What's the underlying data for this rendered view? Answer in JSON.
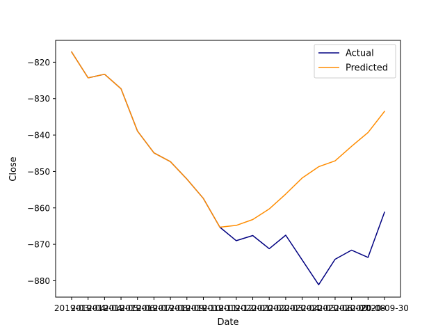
{
  "chart_data": {
    "type": "line",
    "title": "",
    "xlabel": "Date",
    "ylabel": "Close",
    "ylim": [
      -884.5,
      -814.0
    ],
    "yticks": [
      -880,
      -870,
      -860,
      -850,
      -840,
      -830,
      -820
    ],
    "x": [
      "2019-03",
      "2019-04",
      "2019-04",
      "2019-05",
      "2019-06",
      "2019-07",
      "2019-08",
      "2019-09",
      "2019-10",
      "2019-11",
      "2019-12",
      "2020-01",
      "2020-02",
      "2020-03",
      "2020-04",
      "2020-05",
      "2020-06",
      "2020-07",
      "2020-08",
      "2020-09"
    ],
    "xtick_labels": [
      "2019-03",
      "2019-04",
      "2019-04",
      "2019-05",
      "2019-06",
      "2019-07",
      "2019-08",
      "2019-09",
      "2019-10",
      "2019-11",
      "2019-12",
      "2020-01",
      "2020-02",
      "2020-03",
      "2020-04",
      "2020-05",
      "2020-06",
      "2020-07",
      "2020-08",
      "2020-09-30"
    ],
    "series": [
      {
        "name": "Actual",
        "color": "#000080",
        "values": [
          -817.2,
          -824.3,
          -823.3,
          -827.3,
          -838.9,
          -844.9,
          -847.3,
          -852.1,
          -857.4,
          -865.3,
          -869.0,
          -867.6,
          -871.2,
          -867.5,
          -874.3,
          -881.1,
          -874.1,
          -871.6,
          -873.6,
          -861.2
        ]
      },
      {
        "name": "Predicted",
        "color": "#ff8c00",
        "values": [
          -817.2,
          -824.3,
          -823.3,
          -827.3,
          -838.9,
          -844.9,
          -847.3,
          -852.1,
          -857.4,
          -865.3,
          -864.8,
          -863.2,
          -860.3,
          -856.2,
          -851.8,
          -848.7,
          -847.1,
          -843.1,
          -839.3,
          -833.5
        ]
      }
    ],
    "grid": false,
    "legend_position": "upper-right"
  }
}
